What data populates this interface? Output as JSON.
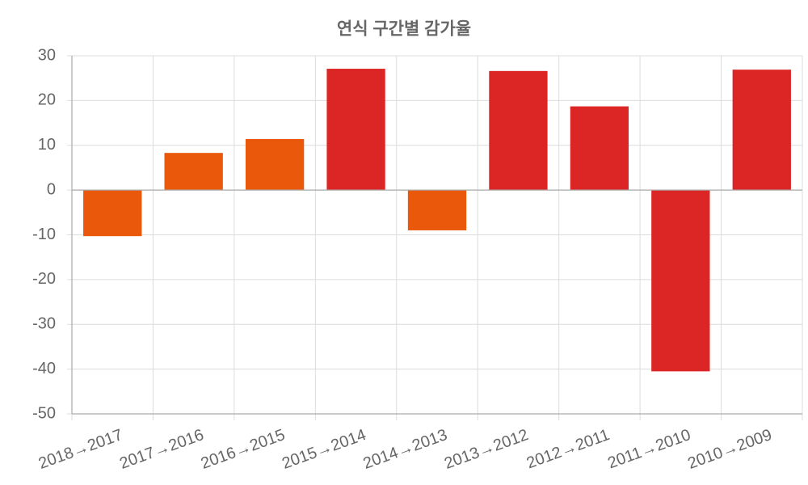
{
  "chart_data": {
    "type": "bar",
    "title": "연식 구간별 감가율",
    "categories": [
      "2018→2017",
      "2017→2016",
      "2016→2015",
      "2015→2014",
      "2014→2013",
      "2013→2012",
      "2012→2011",
      "2011→2010",
      "2010→2009"
    ],
    "values": [
      -10.3,
      8.3,
      11.4,
      27.1,
      -9.0,
      26.6,
      18.7,
      -40.5,
      26.9
    ],
    "colors": [
      "#ea580c",
      "#ea580c",
      "#ea580c",
      "#dc2626",
      "#ea580c",
      "#dc2626",
      "#dc2626",
      "#dc2626",
      "#dc2626"
    ],
    "ylim": [
      -50,
      30
    ],
    "yticks": [
      -50,
      -40,
      -30,
      -20,
      -10,
      0,
      10,
      20,
      30
    ],
    "grid": true
  }
}
